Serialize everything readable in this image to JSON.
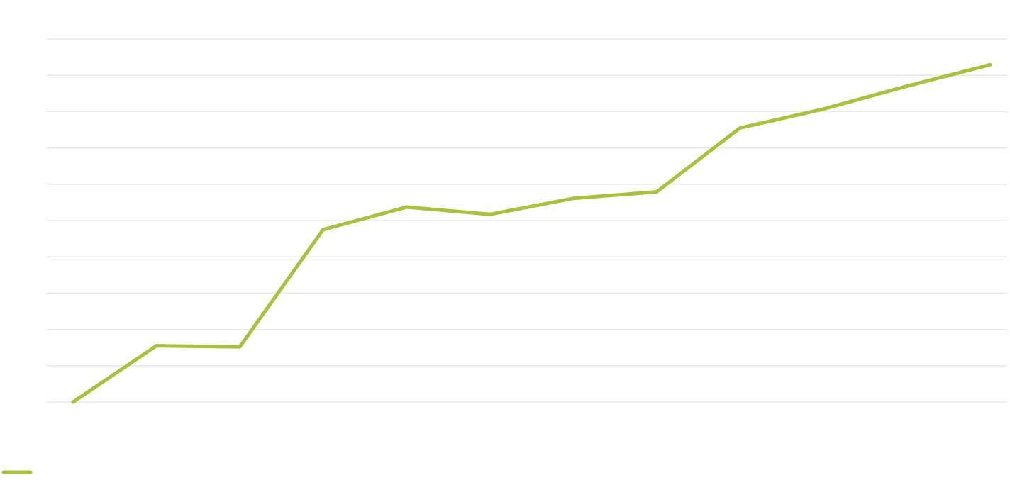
{
  "chart_data": {
    "type": "line",
    "title": "",
    "xlabel": "",
    "ylabel": "",
    "ylim": [
      0,
      10
    ],
    "grid": true,
    "legend_placement": "bottom-left",
    "x": [
      1,
      2,
      3,
      4,
      5,
      6,
      7,
      8,
      9,
      10,
      11,
      12
    ],
    "series": [
      {
        "color": "#a8c23e",
        "values": [
          0,
          1.55,
          1.52,
          4.75,
          5.37,
          5.17,
          5.61,
          5.79,
          7.55,
          8.07,
          8.7,
          9.29
        ]
      }
    ]
  }
}
